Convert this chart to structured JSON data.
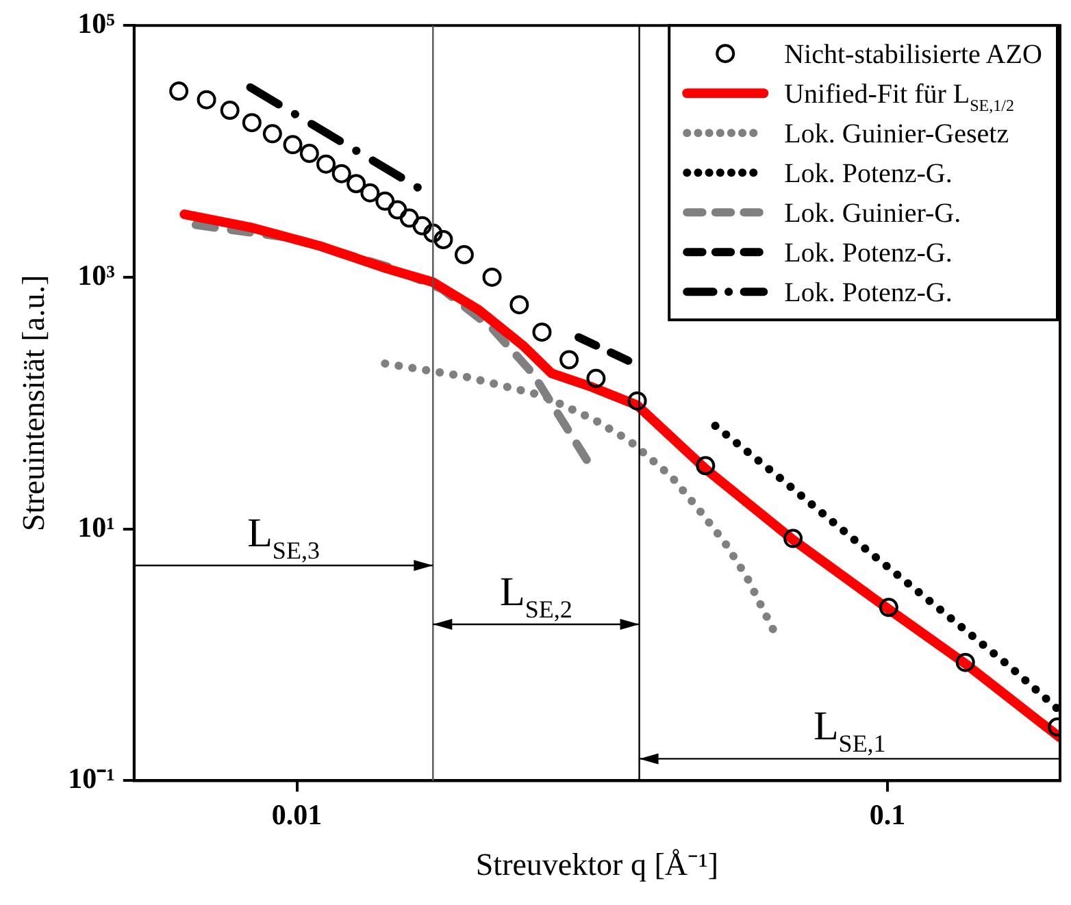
{
  "chart_data": {
    "type": "line",
    "xlabel": "Streuvektor q [Å⁻¹]",
    "ylabel": "Streuintensität [a.u.]",
    "log": "xy",
    "grid": false,
    "legend": "top right",
    "xlim": [
      0.0053,
      0.196
    ],
    "xticks": [
      0.01,
      0.1
    ],
    "ylim": [
      0.1,
      100000
    ],
    "yticks": [
      {
        "value": 0.1,
        "label": "10⁻¹"
      },
      {
        "value": 10,
        "label": "10¹"
      },
      {
        "value": 1000,
        "label": "10³"
      },
      {
        "value": 100000,
        "label": "10⁵"
      }
    ],
    "series": [
      {
        "name": "Nicht-stabilisierte AZO",
        "type": "scatter",
        "marker": "circle",
        "color": "#000000",
        "x": [
          0.00631,
          0.00703,
          0.0077,
          0.00839,
          0.00909,
          0.00984,
          0.0105,
          0.0112,
          0.0119,
          0.0126,
          0.0133,
          0.0141,
          0.0148,
          0.0155,
          0.0163,
          0.017,
          0.0177,
          0.0192,
          0.0214,
          0.0238,
          0.026,
          0.0289,
          0.0321,
          0.0377,
          0.0492,
          0.0692,
          0.1005,
          0.1355,
          0.194
        ],
        "values": [
          30100,
          25700,
          21200,
          16900,
          13800,
          11300,
          9630,
          7920,
          6650,
          5540,
          4680,
          4020,
          3430,
          2950,
          2560,
          2240,
          1990,
          1510,
          1000,
          604,
          366,
          221,
          157,
          104,
          31.8,
          8.4,
          2.38,
          0.87,
          0.267
        ]
      },
      {
        "name": "Unified-Fit für L$_{SE,1/2}$",
        "line_style": "solid",
        "color": "#ff0000",
        "x": [
          0.00645,
          0.00834,
          0.0109,
          0.0142,
          0.017,
          0.0203,
          0.0242,
          0.027,
          0.0316,
          0.0377,
          0.0492,
          0.0692,
          0.1005,
          0.1355,
          0.196
        ],
        "values": [
          3160,
          2490,
          1780,
          1170,
          912,
          551,
          284,
          172,
          134,
          96,
          30,
          8.2,
          2.3,
          0.85,
          0.22
        ]
      },
      {
        "name": "Lok. Guinier-Gesetz",
        "line_style": "dotted",
        "color": "#808080",
        "x": [
          0.0141,
          0.0192,
          0.026,
          0.0319,
          0.0365,
          0.0385,
          0.0431,
          0.0479,
          0.053,
          0.0578,
          0.0642
        ],
        "values": [
          206,
          163,
          115,
          73.6,
          50.5,
          40.9,
          26,
          14.3,
          7.83,
          4.14,
          1.55
        ]
      },
      {
        "name": "Lok. Potenz-G.",
        "line_style": "dotted",
        "color": "#000000",
        "x": [
          0.0511,
          0.0655,
          0.0885,
          0.12,
          0.162,
          0.194
        ],
        "values": [
          66,
          25.8,
          7.98,
          2.5,
          0.79,
          0.373
        ]
      },
      {
        "name": "Lok. Guinier-G.",
        "line_style": "dashed",
        "color": "#808080",
        "x": [
          0.00674,
          0.00996,
          0.0142,
          0.0176,
          0.0214,
          0.0251,
          0.0284,
          0.0314
        ],
        "values": [
          2600,
          2020,
          1220,
          804,
          394,
          171,
          67.7,
          31.8
        ]
      },
      {
        "name": "Lok. Potenz-G.",
        "line_style": "dashed",
        "color": "#000000",
        "x": [
          0.03,
          0.0377
        ],
        "values": [
          333,
          201
        ]
      },
      {
        "name": "Lok. Potenz-G.",
        "line_style": "dashdot",
        "color": "#000000",
        "x": [
          0.00834,
          0.0161
        ],
        "values": [
          32200,
          5090
        ]
      }
    ],
    "ref_lines": [
      {
        "axis": "x",
        "value": 0.017,
        "color": "#555555"
      },
      {
        "axis": "x",
        "value": 0.038,
        "color": "#000000"
      }
    ],
    "annotations": [
      "L$_{SE,3}$",
      "L$_{SE,2}$",
      "L$_{SE,1}$"
    ]
  }
}
